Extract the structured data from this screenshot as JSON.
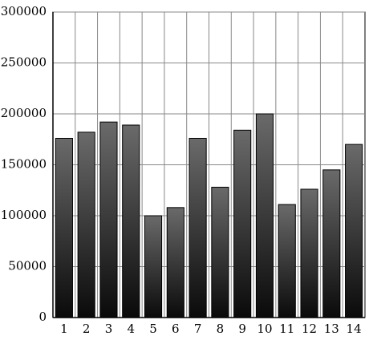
{
  "chart_data": {
    "type": "bar",
    "categories": [
      "1",
      "2",
      "3",
      "4",
      "5",
      "6",
      "7",
      "8",
      "9",
      "10",
      "11",
      "12",
      "13",
      "14"
    ],
    "values": [
      176000,
      182000,
      192000,
      189000,
      100000,
      108000,
      176000,
      128000,
      184000,
      200000,
      111000,
      126000,
      145000,
      170000
    ],
    "color": "#6a6a6a",
    "ylim": [
      0,
      300000
    ],
    "yticks": [
      0,
      50000,
      100000,
      150000,
      200000,
      250000,
      300000
    ],
    "grid": true
  }
}
